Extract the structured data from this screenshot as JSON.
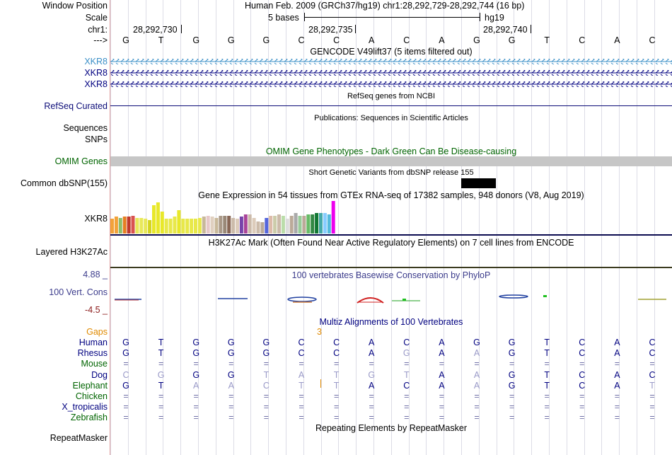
{
  "labels": {
    "window_position": "Window Position",
    "scale": "Scale",
    "chrom": "chr1:",
    "strand": "--->",
    "gencode_1": "XKR8",
    "gencode_2": "XKR8",
    "gencode_3": "XKR8",
    "refseq": "RefSeq Curated",
    "sequences": "Sequences",
    "snps": "SNPs",
    "omim": "OMIM Genes",
    "dbsnp": "Common dbSNP(155)",
    "gtex": "XKR8",
    "h3k27": "Layered H3K27Ac",
    "cons_max": "4.88 _",
    "cons_name": "100 Vert. Cons",
    "cons_min": "-4.5 _",
    "gaps": "Gaps",
    "repeatmasker": "RepeatMasker"
  },
  "ruler": {
    "position_text": "Human Feb. 2009 (GRCh37/hg19)   chr1:28,292,729-28,292,744 (16 bp)",
    "scale_text": "5 bases",
    "assembly": "hg19",
    "tick1": "28,292,730",
    "tick2": "28,292,735",
    "tick3": "28,292,740"
  },
  "bases": [
    "G",
    "T",
    "G",
    "G",
    "G",
    "C",
    "C",
    "A",
    "C",
    "A",
    "G",
    "G",
    "T",
    "C",
    "A",
    "C"
  ],
  "track_titles": {
    "gencode": "GENCODE V49lift37 (5 items filtered out)",
    "refseq": "RefSeq genes from NCBI",
    "publications": "Publications: Sequences in Scientific Articles",
    "omim": "OMIM Gene Phenotypes - Dark Green Can Be Disease-causing",
    "dbsnp": "Short Genetic Variants from dbSNP release 155",
    "gtex": "Gene Expression in 54 tissues from GTEx RNA-seq of 17382 samples, 948 donors (V8, Aug 2019)",
    "h3k27": "H3K27Ac Mark (Often Found Near Active Regulatory Elements) on 7 cell lines from ENCODE",
    "phylop": "100 vertebrates Basewise Conservation by PhyloP",
    "multiz": "Multiz Alignments of 100 Vertebrates",
    "repeatmasker": "Repeating Elements by RepeatMasker"
  },
  "gap_count": "3",
  "gtex_values": [
    0.45,
    0.52,
    0.48,
    0.52,
    0.52,
    0.55,
    0.48,
    0.48,
    0.45,
    0.42,
    0.88,
    0.95,
    0.68,
    0.45,
    0.45,
    0.52,
    0.72,
    0.45,
    0.45,
    0.45,
    0.45,
    0.48,
    0.52,
    0.55,
    0.52,
    0.48,
    0.55,
    0.55,
    0.55,
    0.48,
    0.45,
    0.52,
    0.58,
    0.58,
    0.48,
    0.38,
    0.35,
    0.48,
    0.55,
    0.55,
    0.58,
    0.55,
    0.45,
    0.55,
    0.62,
    0.55,
    0.55,
    0.58,
    0.58,
    0.62,
    0.62,
    0.62,
    0.58,
    1.0
  ],
  "gtex_colors": [
    "#f2a23a",
    "#f2a23a",
    "#8fbf6a",
    "#e67e22",
    "#c0392b",
    "#d9534f",
    "#e8e85a",
    "#e8e85a",
    "#e8e85a",
    "#d4d420",
    "#e8e82a",
    "#e8e82a",
    "#e8e82a",
    "#e8e84a",
    "#e8e84a",
    "#e8e84a",
    "#e8e82a",
    "#e8e84a",
    "#e8e84a",
    "#e8e84a",
    "#e8e84a",
    "#e8e84a",
    "#c8b89a",
    "#e6c8c8",
    "#e0d0c0",
    "#c8b89a",
    "#aa9988",
    "#998877",
    "#886655",
    "#ccbbaa",
    "#ddccbb",
    "#7744aa",
    "#aa4499",
    "#ccbbaa",
    "#ddccbb",
    "#ccbbaa",
    "#bbaa99",
    "#5566dd",
    "#ddbbaa",
    "#ccccaa",
    "#ccbbaa",
    "#bbddaa",
    "#dddddd",
    "#bbaa99",
    "#aaaaaa",
    "#99cc99",
    "#bbaa99",
    "#66bb66",
    "#338844",
    "#117733",
    "#44aaaa",
    "#88ccff",
    "#55bbdd",
    "#ee00ee"
  ],
  "species": [
    {
      "name": "Human",
      "color": "#000080",
      "bases": [
        "G",
        "T",
        "G",
        "G",
        "G",
        "C",
        "C",
        "A",
        "C",
        "A",
        "G",
        "G",
        "T",
        "C",
        "A",
        "C"
      ],
      "faint": []
    },
    {
      "name": "Rhesus",
      "color": "#000080",
      "bases": [
        "G",
        "T",
        "G",
        "G",
        "G",
        "C",
        "C",
        "A",
        "G",
        "A",
        "A",
        "G",
        "T",
        "C",
        "A",
        "C"
      ],
      "faint": [
        8,
        10
      ]
    },
    {
      "name": "Mouse",
      "color": "#006400",
      "bases": [
        "=",
        "=",
        "=",
        "=",
        "=",
        "=",
        "=",
        "=",
        "=",
        "=",
        "=",
        "=",
        "=",
        "=",
        "=",
        "="
      ],
      "faint": []
    },
    {
      "name": "Dog",
      "color": "#000080",
      "bases": [
        "C",
        "G",
        "G",
        "G",
        "T",
        "A",
        "T",
        "G",
        "T",
        "A",
        "A",
        "G",
        "T",
        "C",
        "A",
        "C"
      ],
      "faint": [
        0,
        1,
        4,
        5,
        6,
        7,
        8,
        10
      ]
    },
    {
      "name": "Elephant",
      "color": "#006400",
      "bases": [
        "G",
        "T",
        "A",
        "A",
        "C",
        "T",
        "T",
        "A",
        "C",
        "A",
        "A",
        "G",
        "T",
        "C",
        "A",
        "T"
      ],
      "faint": [
        2,
        3,
        4,
        5,
        6,
        10,
        15
      ]
    },
    {
      "name": "Chicken",
      "color": "#006400",
      "bases": [
        "=",
        "=",
        "=",
        "=",
        "=",
        "=",
        "=",
        "=",
        "=",
        "=",
        "=",
        "=",
        "=",
        "=",
        "=",
        "="
      ],
      "faint": []
    },
    {
      "name": "X_tropicalis",
      "color": "#000080",
      "bases": [
        "=",
        "=",
        "=",
        "=",
        "=",
        "=",
        "=",
        "=",
        "=",
        "=",
        "=",
        "=",
        "=",
        "=",
        "=",
        "="
      ],
      "faint": []
    },
    {
      "name": "Zebrafish",
      "color": "#006400",
      "bases": [
        "=",
        "=",
        "=",
        "=",
        "=",
        "=",
        "=",
        "=",
        "=",
        "=",
        "=",
        "=",
        "=",
        "=",
        "=",
        "="
      ],
      "faint": []
    }
  ]
}
